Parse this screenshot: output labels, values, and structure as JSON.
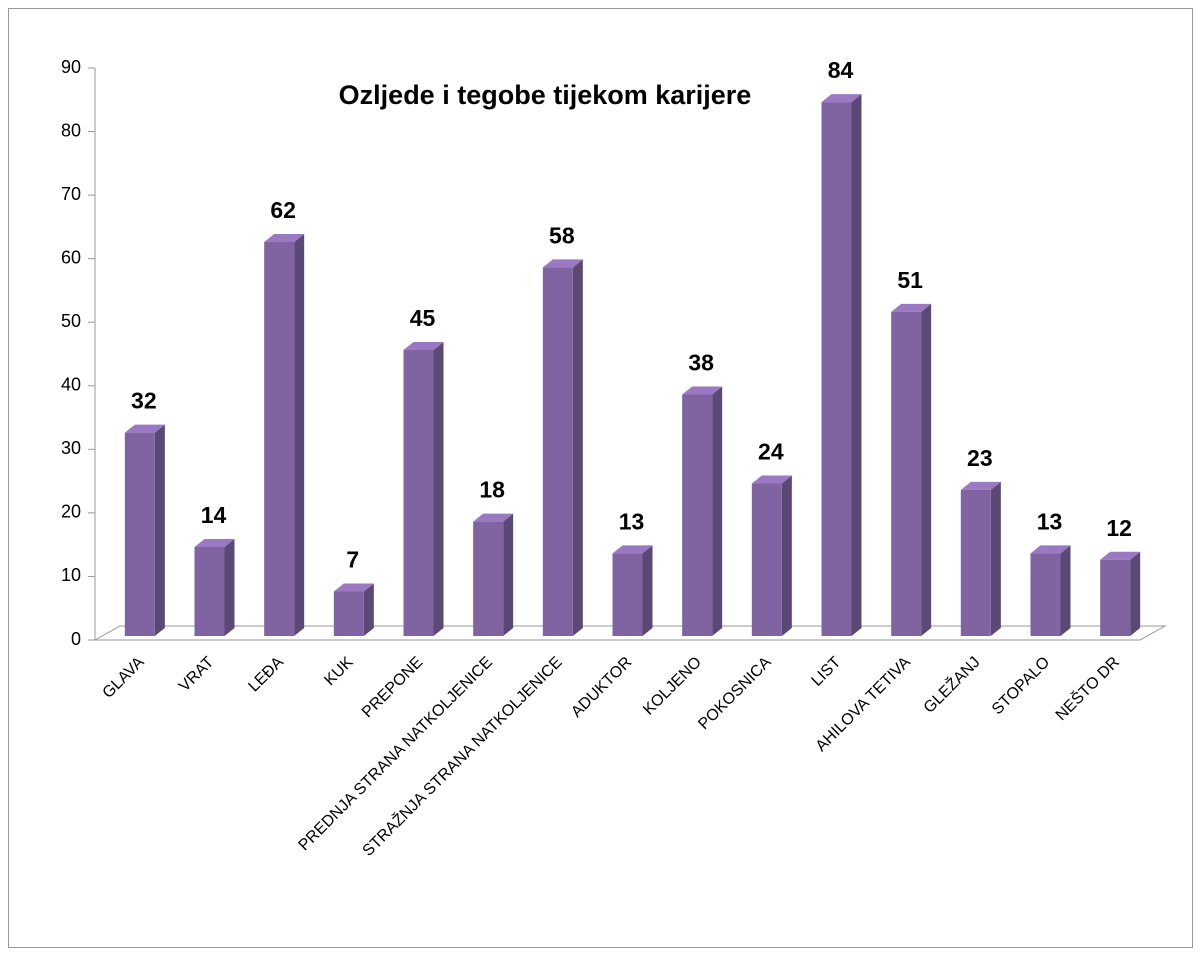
{
  "chart_data": {
    "type": "bar3d",
    "title": "Ozljede i tegobe tijekom karijere",
    "categories": [
      "GLAVA",
      "VRAT",
      "LEĐA",
      "KUK",
      "PREPONE",
      "PREDNJA STRANA NATKOLJENICE",
      "STRAŽNJA STRANA NATKOLJENICE",
      "ADUKTOR",
      "KOLJENO",
      "POKOSNICA",
      "LIST",
      "AHILOVA TETIVA",
      "GLEŽANJ",
      "STOPALO",
      "NEŠTO DR"
    ],
    "values": [
      32,
      14,
      62,
      7,
      45,
      18,
      58,
      13,
      38,
      24,
      84,
      51,
      23,
      13,
      12
    ],
    "color": "#8064a2",
    "ylim": [
      0,
      90
    ],
    "yticks": [
      0,
      10,
      20,
      30,
      40,
      50,
      60,
      70,
      80,
      90
    ],
    "grid": false
  }
}
